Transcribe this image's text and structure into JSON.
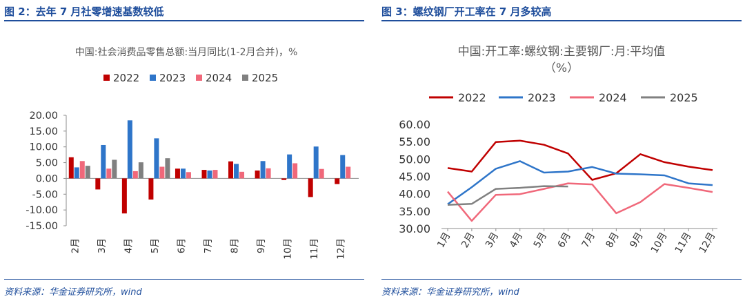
{
  "left": {
    "figure_title": "图 2：去年 7 月社零增速基数较低",
    "source": "资料来源：华金证券研究所，wind"
  },
  "right": {
    "figure_title": "图 3：螺纹钢厂开工率在 7 月多较高",
    "source": "资料来源：华金证券研究所，wind"
  },
  "chart_data": [
    {
      "type": "bar",
      "title": "中国:社会消费品零售总额:当月同比(1-2月合并)，%",
      "categories": [
        "2月",
        "3月",
        "4月",
        "5月",
        "6月",
        "7月",
        "8月",
        "9月",
        "10月",
        "11月",
        "12月"
      ],
      "series": [
        {
          "name": "2022",
          "color": "#c00000",
          "values": [
            6.7,
            -3.5,
            -11.1,
            -6.7,
            3.1,
            2.7,
            5.4,
            2.5,
            -0.5,
            -5.9,
            -1.8
          ]
        },
        {
          "name": "2023",
          "color": "#2e75c9",
          "values": [
            3.5,
            10.6,
            18.4,
            12.7,
            3.1,
            2.5,
            4.6,
            5.5,
            7.6,
            10.1,
            7.4
          ]
        },
        {
          "name": "2024",
          "color": "#f0687a",
          "values": [
            5.5,
            3.1,
            2.3,
            3.7,
            2.0,
            2.7,
            2.1,
            3.2,
            4.8,
            3.0,
            3.7
          ]
        },
        {
          "name": "2025",
          "color": "#808080",
          "values": [
            4.0,
            5.9,
            5.1,
            6.4,
            null,
            null,
            null,
            null,
            null,
            null,
            null
          ]
        }
      ],
      "yticks": [
        "20.00",
        "15.00",
        "10.00",
        "5.00",
        "0.00",
        "-5.00",
        "-10.00",
        "-15.00"
      ],
      "ylim": [
        -15,
        20
      ],
      "legend": "top"
    },
    {
      "type": "line",
      "title": "中国:开工率:螺纹钢:主要钢厂:月:平均值",
      "title_unit": "（%）",
      "categories": [
        "1月",
        "2月",
        "3月",
        "4月",
        "5月",
        "6月",
        "7月",
        "8月",
        "9月",
        "10月",
        "11月",
        "12月"
      ],
      "series": [
        {
          "name": "2022",
          "color": "#c00000",
          "values": [
            47.4,
            46.4,
            54.9,
            55.3,
            54.1,
            51.6,
            44.0,
            45.9,
            51.4,
            49.1,
            47.8,
            46.8
          ]
        },
        {
          "name": "2023",
          "color": "#2e75c9",
          "values": [
            37.0,
            41.9,
            47.2,
            49.4,
            46.1,
            46.4,
            47.7,
            45.8,
            45.6,
            45.3,
            43.0,
            42.5
          ]
        },
        {
          "name": "2024",
          "color": "#f0687a",
          "values": [
            40.6,
            32.2,
            39.7,
            39.9,
            41.4,
            43.0,
            42.7,
            34.4,
            37.6,
            42.8,
            41.7,
            40.5
          ]
        },
        {
          "name": "2025",
          "color": "#808080",
          "values": [
            36.8,
            37.1,
            41.4,
            41.7,
            42.2,
            42.1,
            null,
            null,
            null,
            null,
            null,
            null
          ]
        }
      ],
      "yticks": [
        "60.00",
        "55.00",
        "50.00",
        "45.00",
        "40.00",
        "35.00",
        "30.00"
      ],
      "ylim": [
        30,
        60
      ],
      "legend": "top"
    }
  ]
}
